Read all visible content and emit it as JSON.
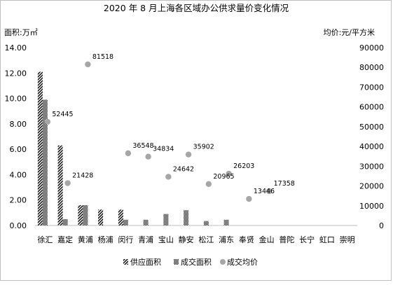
{
  "chart_data": {
    "type": "bar",
    "title": "2020 年 8 月上海各区域办公供求量价变化情况",
    "y_left_label": "面积:万㎡",
    "y_right_label": "均价:元/平方米",
    "categories": [
      "徐汇",
      "嘉定",
      "黄浦",
      "杨浦",
      "闵行",
      "青浦",
      "宝山",
      "静安",
      "松江",
      "浦东",
      "奉贤",
      "金山",
      "普陀",
      "长宁",
      "虹口",
      "崇明"
    ],
    "y_left_ticks": [
      "0.00",
      "2.00",
      "4.00",
      "6.00",
      "8.00",
      "10.00",
      "12.00",
      "14.00"
    ],
    "y_left_range": [
      0,
      14
    ],
    "y_right_ticks": [
      "0",
      "10000",
      "20000",
      "30000",
      "40000",
      "50000",
      "60000",
      "70000",
      "80000",
      "90000"
    ],
    "y_right_range": [
      0,
      90000
    ],
    "series": [
      {
        "name": "供应面积",
        "kind": "bar",
        "axis": "left",
        "pattern": "diagonal",
        "values": [
          12.1,
          6.3,
          1.6,
          1.25,
          1.25,
          0,
          0,
          0,
          0,
          0,
          0,
          0,
          0,
          0,
          0,
          0
        ]
      },
      {
        "name": "成交面积",
        "kind": "bar",
        "axis": "left",
        "pattern": "checker",
        "values": [
          9.9,
          0.5,
          1.6,
          0,
          0.45,
          0.45,
          0.9,
          1.2,
          0.35,
          0.45,
          0,
          0,
          0,
          0,
          0,
          0
        ]
      },
      {
        "name": "成交均价",
        "kind": "scatter",
        "axis": "right",
        "values": [
          52445,
          21428,
          81518,
          null,
          36548,
          34834,
          24642,
          35902,
          20965,
          26203,
          13446,
          17358,
          null,
          null,
          null,
          null
        ],
        "labels": [
          "52445",
          "21428",
          "81518",
          "",
          "36548",
          "34834",
          "24642",
          "35902",
          "20965",
          "26203",
          "13446",
          "17358",
          "",
          "",
          "",
          ""
        ]
      }
    ],
    "legend_position": "bottom",
    "grid": false
  }
}
